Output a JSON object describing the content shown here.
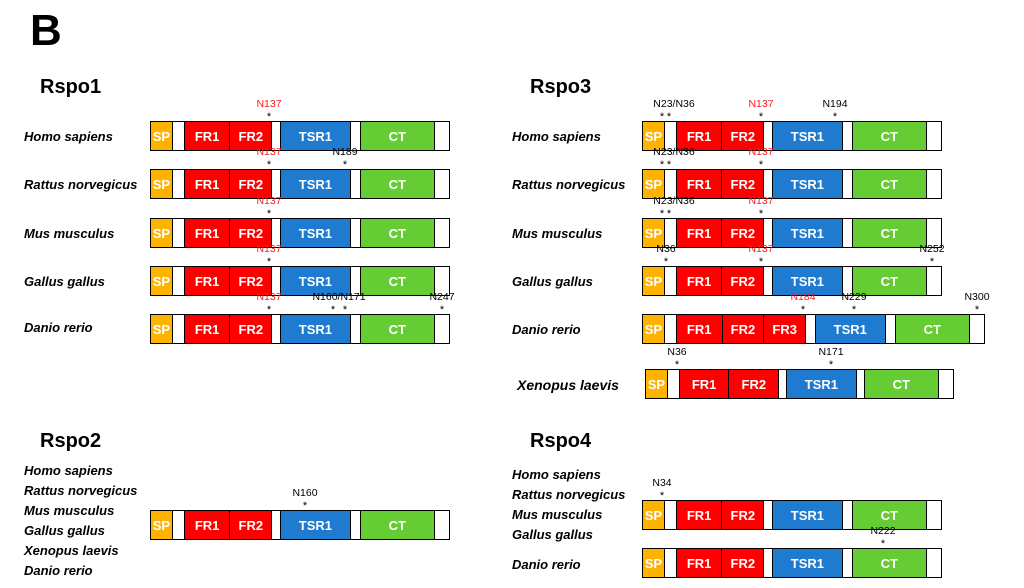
{
  "panel_label": "B",
  "colors": {
    "SP": "#ffb300",
    "FR": "#ff0000",
    "TSR1": "#1f7bd0",
    "CT": "#66cc33",
    "red_site": "#ff1a1a"
  },
  "groups": [
    {
      "id": "rspo1",
      "title": "Rspo1",
      "rows": [
        {
          "species": "Homo sapiens",
          "domains": [
            {
              "t": "SP"
            },
            {
              "t": ""
            },
            {
              "t": "FR1"
            },
            {
              "t": "FR2"
            },
            {
              "t": ""
            },
            {
              "t": "TSR1"
            },
            {
              "t": ""
            },
            {
              "t": "CT"
            },
            {
              "t": ""
            }
          ],
          "sites": [
            {
              "label": "N137",
              "red": true,
              "at": "FR2-end"
            }
          ]
        },
        {
          "species": "Rattus norvegicus",
          "domains": [
            {
              "t": "SP"
            },
            {
              "t": ""
            },
            {
              "t": "FR1"
            },
            {
              "t": "FR2"
            },
            {
              "t": ""
            },
            {
              "t": "TSR1"
            },
            {
              "t": ""
            },
            {
              "t": "CT"
            },
            {
              "t": ""
            }
          ],
          "sites": [
            {
              "label": "N137",
              "red": true
            },
            {
              "label": "N189",
              "red": false
            }
          ]
        },
        {
          "species": "Mus musculus",
          "domains": [
            {
              "t": "SP"
            },
            {
              "t": ""
            },
            {
              "t": "FR1"
            },
            {
              "t": "FR2"
            },
            {
              "t": ""
            },
            {
              "t": "TSR1"
            },
            {
              "t": ""
            },
            {
              "t": "CT"
            },
            {
              "t": ""
            }
          ],
          "sites": [
            {
              "label": "N137",
              "red": true
            }
          ]
        },
        {
          "species": "Gallus gallus",
          "domains": [
            {
              "t": "SP"
            },
            {
              "t": ""
            },
            {
              "t": "FR1"
            },
            {
              "t": "FR2"
            },
            {
              "t": ""
            },
            {
              "t": "TSR1"
            },
            {
              "t": ""
            },
            {
              "t": "CT"
            },
            {
              "t": ""
            }
          ],
          "sites": [
            {
              "label": "N137",
              "red": true
            }
          ]
        },
        {
          "species": "Danio rerio",
          "domains": [
            {
              "t": "SP"
            },
            {
              "t": ""
            },
            {
              "t": "FR1"
            },
            {
              "t": "FR2"
            },
            {
              "t": ""
            },
            {
              "t": "TSR1"
            },
            {
              "t": ""
            },
            {
              "t": "CT"
            },
            {
              "t": ""
            }
          ],
          "sites": [
            {
              "label": "N137",
              "red": true
            },
            {
              "label": "N160/N171",
              "red": false
            },
            {
              "label": "N247",
              "red": false
            }
          ]
        }
      ]
    },
    {
      "id": "rspo2",
      "title": "Rspo2",
      "species_list": [
        "Homo sapiens",
        "Rattus norvegicus",
        "Mus musculus",
        "Gallus gallus",
        "Xenopus laevis",
        "Danio rerio"
      ],
      "domains": [
        {
          "t": "SP"
        },
        {
          "t": ""
        },
        {
          "t": "FR1"
        },
        {
          "t": "FR2"
        },
        {
          "t": ""
        },
        {
          "t": "TSR1"
        },
        {
          "t": ""
        },
        {
          "t": "CT"
        },
        {
          "t": ""
        }
      ],
      "sites": [
        {
          "label": "N160",
          "red": false
        }
      ]
    },
    {
      "id": "rspo3",
      "title": "Rspo3",
      "rows": [
        {
          "species": "Homo sapiens",
          "domains": [
            {
              "t": "SP"
            },
            {
              "t": ""
            },
            {
              "t": "FR1"
            },
            {
              "t": "FR2"
            },
            {
              "t": ""
            },
            {
              "t": "TSR1"
            },
            {
              "t": ""
            },
            {
              "t": "CT"
            },
            {
              "t": ""
            }
          ],
          "sites": [
            {
              "label": "N23/N36",
              "red": false
            },
            {
              "label": "N137",
              "red": true
            },
            {
              "label": "N194",
              "red": false
            }
          ]
        },
        {
          "species": "Rattus norvegicus",
          "domains": [
            {
              "t": "SP"
            },
            {
              "t": ""
            },
            {
              "t": "FR1"
            },
            {
              "t": "FR2"
            },
            {
              "t": ""
            },
            {
              "t": "TSR1"
            },
            {
              "t": ""
            },
            {
              "t": "CT"
            },
            {
              "t": ""
            }
          ],
          "sites": [
            {
              "label": "N23/N36",
              "red": false
            },
            {
              "label": "N137",
              "red": true
            }
          ]
        },
        {
          "species": "Mus musculus",
          "domains": [
            {
              "t": "SP"
            },
            {
              "t": ""
            },
            {
              "t": "FR1"
            },
            {
              "t": "FR2"
            },
            {
              "t": ""
            },
            {
              "t": "TSR1"
            },
            {
              "t": ""
            },
            {
              "t": "CT"
            },
            {
              "t": ""
            }
          ],
          "sites": [
            {
              "label": "N23/N36",
              "red": false
            },
            {
              "label": "N137",
              "red": true
            }
          ]
        },
        {
          "species": "Gallus gallus",
          "domains": [
            {
              "t": "SP"
            },
            {
              "t": ""
            },
            {
              "t": "FR1"
            },
            {
              "t": "FR2"
            },
            {
              "t": ""
            },
            {
              "t": "TSR1"
            },
            {
              "t": ""
            },
            {
              "t": "CT"
            },
            {
              "t": ""
            }
          ],
          "sites": [
            {
              "label": "N36",
              "red": false
            },
            {
              "label": "N137",
              "red": true
            },
            {
              "label": "N252",
              "red": false
            }
          ]
        },
        {
          "species": "Danio rerio",
          "domains": [
            {
              "t": "SP"
            },
            {
              "t": ""
            },
            {
              "t": "FR1"
            },
            {
              "t": "FR2"
            },
            {
              "t": "FR3"
            },
            {
              "t": ""
            },
            {
              "t": "TSR1"
            },
            {
              "t": ""
            },
            {
              "t": "CT"
            },
            {
              "t": ""
            }
          ],
          "sites": [
            {
              "label": "N184",
              "red": true
            },
            {
              "label": "N229",
              "red": false
            },
            {
              "label": "N300",
              "red": false
            }
          ]
        },
        {
          "species": "Xenopus laevis",
          "domains": [
            {
              "t": "SP"
            },
            {
              "t": ""
            },
            {
              "t": "FR1"
            },
            {
              "t": "FR2"
            },
            {
              "t": ""
            },
            {
              "t": "TSR1"
            },
            {
              "t": ""
            },
            {
              "t": "CT"
            },
            {
              "t": ""
            }
          ],
          "sites": [
            {
              "label": "N36",
              "red": false
            },
            {
              "label": "N171",
              "red": false
            }
          ]
        }
      ]
    },
    {
      "id": "rspo4",
      "title": "Rspo4",
      "species_list": [
        "Homo sapiens",
        "Rattus norvegicus",
        "Mus musculus",
        "Gallus gallus"
      ],
      "species_last": "Danio rerio",
      "bar_a": {
        "domains": [
          {
            "t": "SP"
          },
          {
            "t": ""
          },
          {
            "t": "FR1"
          },
          {
            "t": "FR2"
          },
          {
            "t": ""
          },
          {
            "t": "TSR1"
          },
          {
            "t": ""
          },
          {
            "t": "CT"
          },
          {
            "t": ""
          }
        ],
        "sites": [
          {
            "label": "N34",
            "red": false
          }
        ]
      },
      "bar_b": {
        "domains": [
          {
            "t": "SP"
          },
          {
            "t": ""
          },
          {
            "t": "FR1"
          },
          {
            "t": "FR2"
          },
          {
            "t": ""
          },
          {
            "t": "TSR1"
          },
          {
            "t": ""
          },
          {
            "t": "CT"
          },
          {
            "t": ""
          }
        ],
        "sites": [
          {
            "label": "N222",
            "red": false
          }
        ]
      }
    }
  ]
}
